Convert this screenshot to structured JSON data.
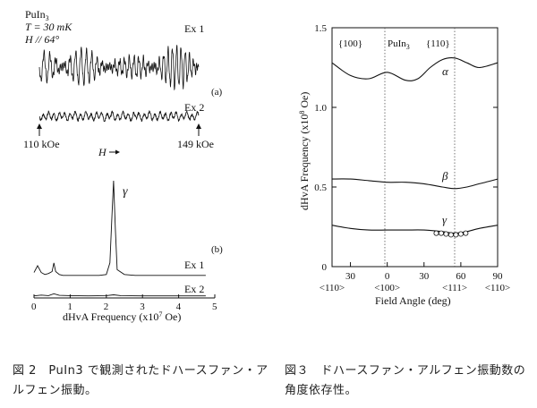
{
  "figure2": {
    "panel_a": {
      "sample": "PuIn",
      "sample_sub": "3",
      "temperature": "T = 30 mK",
      "field_direction": "H // 64°",
      "ex1_label": "Ex 1",
      "ex2_label": "Ex 2",
      "panel_label": "(a)",
      "field_start": "110 kOe",
      "field_end": "149 kOe",
      "field_arrow_label": "H"
    },
    "panel_b": {
      "panel_label": "(b)",
      "peak_label": "γ",
      "ex1_label": "Ex 1",
      "ex2_label": "Ex 2",
      "xlabel": "dHvA Frequency (x10",
      "xlabel_exp": "7",
      "xlabel_unit": " Oe)",
      "xticks": [
        "0",
        "1",
        "2",
        "3",
        "4",
        "5"
      ]
    },
    "caption": "図 2　PuIn3 で観測されたドハースファン・アルフェン振動。"
  },
  "chart_data": [
    {
      "type": "line",
      "panel": "Fig. 2(b)",
      "xlabel": "dHvA Frequency (x10^7 Oe)",
      "xlim": [
        0,
        5
      ],
      "series": [
        {
          "name": "Ex 1",
          "x": [
            0,
            0.1,
            0.2,
            0.3,
            0.4,
            0.5,
            0.55,
            0.6,
            0.7,
            0.8,
            1.0,
            1.2,
            1.5,
            1.8,
            2.0,
            2.1,
            2.15,
            2.2,
            2.25,
            2.3,
            2.5,
            2.8,
            3.0,
            3.5,
            4.0,
            4.5,
            4.75
          ],
          "y": [
            0.05,
            0.12,
            0.05,
            0.03,
            0.04,
            0.06,
            0.15,
            0.06,
            0.03,
            0.02,
            0.02,
            0.02,
            0.02,
            0.02,
            0.03,
            0.15,
            0.6,
            1.0,
            0.5,
            0.08,
            0.03,
            0.02,
            0.02,
            0.02,
            0.02,
            0.02,
            0.02
          ]
        },
        {
          "name": "Ex 2",
          "x": [
            0,
            0.2,
            0.4,
            0.55,
            0.7,
            1.0,
            1.5,
            2.0,
            2.2,
            2.4,
            3.0,
            3.5,
            4.0,
            4.5,
            4.75
          ],
          "y": [
            0.01,
            0.04,
            0.02,
            0.09,
            0.03,
            0.02,
            0.01,
            0.02,
            0.05,
            0.02,
            0.01,
            0.01,
            0.01,
            0.01,
            0.01
          ]
        }
      ]
    },
    {
      "type": "line",
      "panel": "Fig. 3",
      "xlabel": "Field Angle (deg)",
      "ylabel": "dHvA Frequency (x10^8 Oe)",
      "ylim": [
        0,
        1.5
      ],
      "yticks": [
        "0",
        "0.5",
        "1.0",
        "1.5"
      ],
      "xticks": [
        "30",
        "0",
        "30",
        "60",
        "90"
      ],
      "series": [
        {
          "name": "α",
          "x": [
            -45,
            -30,
            -15,
            0,
            15,
            25,
            35,
            45,
            55,
            65,
            75,
            90
          ],
          "y": [
            1.28,
            1.2,
            1.18,
            1.22,
            1.17,
            1.18,
            1.25,
            1.3,
            1.31,
            1.28,
            1.25,
            1.28
          ]
        },
        {
          "name": "β",
          "x": [
            -45,
            -30,
            -15,
            0,
            15,
            30,
            45,
            55,
            65,
            75,
            90
          ],
          "y": [
            0.55,
            0.55,
            0.54,
            0.53,
            0.53,
            0.52,
            0.5,
            0.49,
            0.5,
            0.52,
            0.55
          ]
        },
        {
          "name": "γ",
          "x": [
            -45,
            -30,
            -15,
            0,
            15,
            30,
            45,
            55,
            65,
            75,
            90
          ],
          "y": [
            0.26,
            0.24,
            0.23,
            0.23,
            0.23,
            0.23,
            0.22,
            0.21,
            0.22,
            0.24,
            0.26
          ]
        },
        {
          "name": "γ (experiment)",
          "x": [
            40,
            44,
            48,
            52,
            56,
            60,
            64
          ],
          "y": [
            0.21,
            0.21,
            0.205,
            0.2,
            0.2,
            0.205,
            0.21
          ]
        }
      ]
    }
  ],
  "figure3": {
    "ylabel_a": "dHvA Frequency (x10",
    "ylabel_exp": "8",
    "ylabel_b": " Oe)",
    "yticks": [
      "0",
      "0.5",
      "1.0",
      "1.5"
    ],
    "xticks": [
      "30",
      "0",
      "30",
      "60",
      "90"
    ],
    "xticks_dir": [
      "<110>",
      "<100>",
      "<111>",
      "<110>"
    ],
    "xlabel": "Field Angle (deg)",
    "top_labels": {
      "left": "{100}",
      "mid": "PuIn",
      "mid_sub": "3",
      "right": "{110}"
    },
    "branch_labels": [
      "α",
      "β",
      "γ"
    ],
    "caption": "図３　ドハースファン・アルフェン振動数の角度依存性。"
  }
}
